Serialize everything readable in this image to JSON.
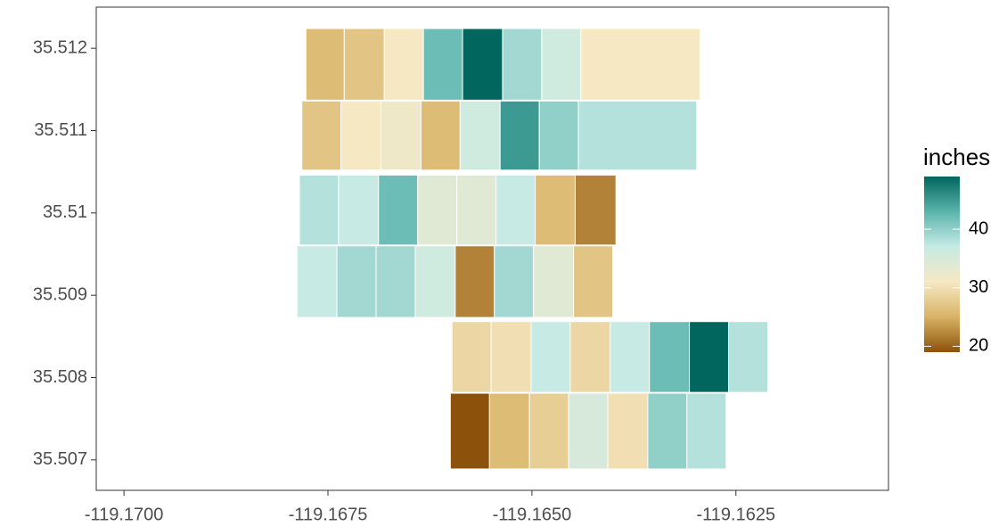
{
  "chart_data": {
    "type": "map",
    "legend_title": "inches",
    "xlim": [
      -119.17034,
      -119.16063
    ],
    "ylim": [
      35.50663,
      35.5125
    ],
    "xticks": [
      {
        "value": -119.17,
        "label": "-119.1700"
      },
      {
        "value": -119.1675,
        "label": "-119.1675"
      },
      {
        "value": -119.165,
        "label": "-119.1650"
      },
      {
        "value": -119.1625,
        "label": "-119.1625"
      }
    ],
    "yticks": [
      35.507,
      35.508,
      35.509,
      35.51,
      35.511,
      35.512
    ],
    "grid": false,
    "legend_position": "right",
    "color_limits": [
      19,
      49
    ],
    "color_ticks": [
      20,
      30,
      40
    ],
    "colors": [
      "#8c510a",
      "#d8b365",
      "#f6e8c3",
      "#c7eae5",
      "#5ab4ac",
      "#01665e"
    ],
    "rows": [
      {
        "lat": [
          35.51137,
          35.51224
        ],
        "lon_edges": [
          -119.16777,
          -119.1673,
          -119.16681,
          -119.16633,
          -119.16585,
          -119.16536,
          -119.16488,
          -119.1644,
          -119.16294
        ],
        "values": [
          26,
          27,
          31,
          42,
          49,
          39,
          36,
          31
        ]
      },
      {
        "lat": [
          35.51052,
          35.51136
        ],
        "lon_edges": [
          -119.16782,
          -119.16734,
          -119.16685,
          -119.16636,
          -119.16588,
          -119.16539,
          -119.16491,
          -119.16443,
          -119.16298
        ],
        "values": [
          27,
          31,
          32,
          26,
          36,
          45,
          40,
          38
        ]
      },
      {
        "lat": [
          35.50961,
          35.51046
        ],
        "lon_edges": [
          -119.16785,
          -119.16737,
          -119.16688,
          -119.1664,
          -119.16592,
          -119.16544,
          -119.16496,
          -119.16447,
          -119.16397
        ],
        "values": [
          38,
          37,
          42,
          34,
          34,
          37,
          26,
          22
        ]
      },
      {
        "lat": [
          35.50873,
          35.5096
        ],
        "lon_edges": [
          -119.16788,
          -119.16739,
          -119.16691,
          -119.16643,
          -119.16594,
          -119.16546,
          -119.16498,
          -119.16449,
          -119.16401
        ],
        "values": [
          37,
          39,
          39,
          36,
          22,
          39,
          34,
          27
        ]
      },
      {
        "lat": [
          35.50782,
          35.50868
        ],
        "lon_edges": [
          -119.16598,
          -119.1655,
          -119.16501,
          -119.16453,
          -119.16404,
          -119.16356,
          -119.16307,
          -119.16259,
          -119.16211
        ],
        "values": [
          29,
          30,
          37,
          29,
          37,
          42,
          49,
          38
        ]
      },
      {
        "lat": [
          35.50689,
          35.50781
        ],
        "lon_edges": [
          -119.166,
          -119.16552,
          -119.16503,
          -119.16455,
          -119.16407,
          -119.16358,
          -119.1631,
          -119.16262
        ],
        "values": [
          19,
          26,
          28,
          35,
          30,
          40,
          38
        ]
      }
    ]
  }
}
